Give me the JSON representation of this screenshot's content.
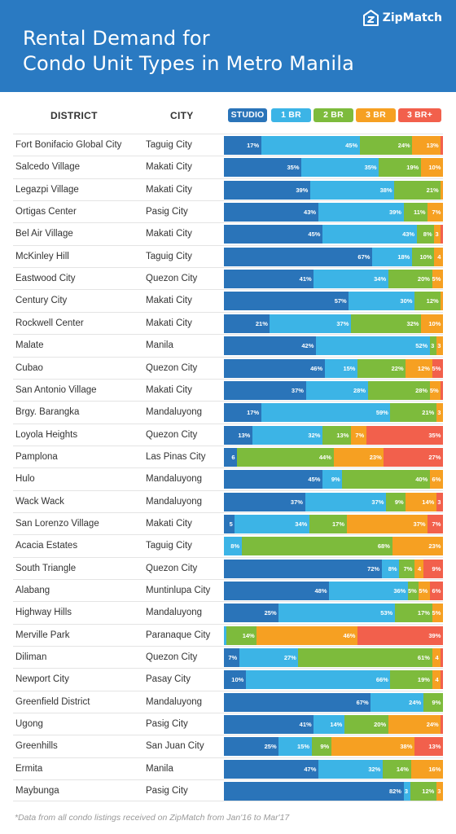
{
  "header": {
    "title_line1": "Rental Demand for",
    "title_line2": "Condo Unit Types in Metro Manila",
    "logo_text": "ZipMatch"
  },
  "columns": {
    "district": "DISTRICT",
    "city": "CITY"
  },
  "colors": {
    "header_bg": "#2a7ac2",
    "studio": "#2a74b9",
    "1br": "#3cb4e6",
    "2br": "#7dbb3c",
    "3br": "#f6a022",
    "3brplus": "#f2604c"
  },
  "chart_data": {
    "type": "bar",
    "orientation": "horizontal",
    "stacked": true,
    "normalized_percent": true,
    "title": "Rental Demand for Condo Unit Types in Metro Manila",
    "categories": [
      "Fort Bonifacio Global City",
      "Salcedo Village",
      "Legazpi Village",
      "Ortigas Center",
      "Bel Air Village",
      "McKinley Hill",
      "Eastwood City",
      "Century City",
      "Rockwell Center",
      "Malate",
      "Cubao",
      "San Antonio Village",
      "Brgy. Barangka",
      "Loyola Heights",
      "Pamplona",
      "Hulo",
      "Wack Wack",
      "San Lorenzo Village",
      "Acacia Estates",
      "South Triangle",
      "Alabang",
      "Highway Hills",
      "Merville Park",
      "Diliman",
      "Newport City",
      "Greenfield District",
      "Ugong",
      "Greenhills",
      "Ermita",
      "Maybunga"
    ],
    "cities": [
      "Taguig City",
      "Makati City",
      "Makati City",
      "Pasig City",
      "Makati City",
      "Taguig City",
      "Quezon City",
      "Makati City",
      "Makati City",
      "Manila",
      "Quezon City",
      "Makati City",
      "Mandaluyong",
      "Quezon City",
      "Las Pinas City",
      "Mandaluyong",
      "Mandaluyong",
      "Makati City",
      "Taguig City",
      "Quezon City",
      "Muntinlupa City",
      "Mandaluyong",
      "Paranaque City",
      "Quezon City",
      "Pasay City",
      "Mandaluyong",
      "Pasig City",
      "San Juan City",
      "Manila",
      "Pasig City"
    ],
    "series": [
      {
        "name": "STUDIO",
        "color": "#2a74b9",
        "values": [
          17,
          35,
          39,
          43,
          45,
          67,
          41,
          57,
          21,
          42,
          46,
          37,
          17,
          13,
          6,
          45,
          37,
          5,
          0,
          72,
          48,
          25,
          0,
          7,
          10,
          67,
          41,
          25,
          47,
          82
        ],
        "labels": [
          "17%",
          "35%",
          "39%",
          "43%",
          "45%",
          "67%",
          "41%",
          "57%",
          "21%",
          "42%",
          "46%",
          "37%",
          "17%",
          "13%",
          "6",
          "45%",
          "37%",
          "5",
          "",
          "72%",
          "48%",
          "25%",
          "",
          "7%",
          "10%",
          "67%",
          "41%",
          "25%",
          "47%",
          "82%"
        ]
      },
      {
        "name": "1 BR",
        "color": "#3cb4e6",
        "values": [
          45,
          35,
          38,
          39,
          43,
          18,
          34,
          30,
          37,
          52,
          15,
          28,
          59,
          32,
          0,
          9,
          37,
          34,
          8,
          8,
          36,
          53,
          1,
          27,
          66,
          24,
          14,
          15,
          32,
          3
        ],
        "labels": [
          "45%",
          "35%",
          "38%",
          "39%",
          "43%",
          "18%",
          "34%",
          "30%",
          "37%",
          "52%",
          "15%",
          "28%",
          "59%",
          "32%",
          "",
          "9%",
          "37%",
          "34%",
          "8%",
          "8%",
          "36%",
          "53%",
          "",
          "27%",
          "66%",
          "24%",
          "14%",
          "15%",
          "32%",
          "3"
        ]
      },
      {
        "name": "2 BR",
        "color": "#7dbb3c",
        "values": [
          24,
          19,
          21,
          11,
          8,
          10,
          20,
          12,
          32,
          3,
          22,
          28,
          21,
          13,
          44,
          40,
          9,
          17,
          68,
          7,
          5,
          17,
          14,
          61,
          19,
          9,
          20,
          9,
          14,
          12
        ],
        "labels": [
          "24%",
          "19%",
          "21%",
          "11%",
          "8%",
          "10%",
          "20%",
          "12%",
          "32%",
          "3",
          "22%",
          "28%",
          "21%",
          "13%",
          "44%",
          "40%",
          "9%",
          "17%",
          "68%",
          "7%",
          "5%",
          "17%",
          "14%",
          "61%",
          "19%",
          "9%",
          "20%",
          "9%",
          "14%",
          "12%"
        ]
      },
      {
        "name": "3 BR",
        "color": "#f6a022",
        "values": [
          13,
          10,
          1,
          7,
          3,
          4,
          5,
          1,
          10,
          3,
          12,
          5,
          3,
          7,
          23,
          6,
          14,
          37,
          23,
          4,
          5,
          5,
          46,
          4,
          4,
          0,
          24,
          38,
          16,
          3
        ],
        "labels": [
          "13%",
          "10%",
          "",
          "7%",
          "3",
          "4",
          "5%",
          "",
          "10%",
          "3",
          "12%",
          "5%",
          "3",
          "7%",
          "23%",
          "6%",
          "14%",
          "37%",
          "23%",
          "4",
          "5%",
          "5%",
          "46%",
          "4",
          "4",
          "",
          "24%",
          "38%",
          "16%",
          "3"
        ]
      },
      {
        "name": "3 BR+",
        "color": "#f2604c",
        "values": [
          1,
          0,
          0,
          0,
          1,
          0,
          0,
          0,
          0,
          0,
          5,
          1,
          0,
          35,
          27,
          0,
          3,
          7,
          0,
          9,
          6,
          0,
          39,
          1,
          1,
          0,
          1,
          13,
          0,
          0
        ],
        "labels": [
          "",
          "",
          "",
          "",
          "",
          "",
          "",
          "",
          "",
          "",
          "5%",
          "",
          "",
          "35%",
          "27%",
          "",
          "3",
          "7%",
          "",
          "9%",
          "6%",
          "",
          "39%",
          "",
          "",
          "",
          "",
          "13%",
          "",
          ""
        ]
      }
    ]
  },
  "footnote": "*Data from all condo listings received on ZipMatch from Jan'16 to Mar'17"
}
